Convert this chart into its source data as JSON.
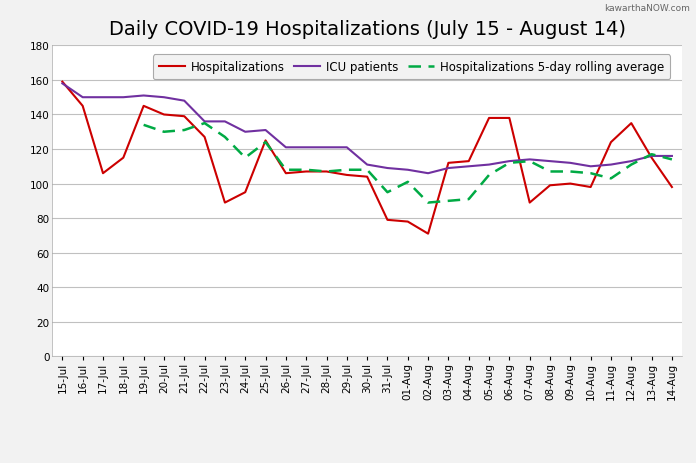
{
  "title": "Daily COVID-19 Hospitalizations (July 15 - August 14)",
  "labels": [
    "15-Jul",
    "16-Jul",
    "17-Jul",
    "18-Jul",
    "19-Jul",
    "20-Jul",
    "21-Jul",
    "22-Jul",
    "23-Jul",
    "24-Jul",
    "25-Jul",
    "26-Jul",
    "27-Jul",
    "28-Jul",
    "29-Jul",
    "30-Jul",
    "31-Jul",
    "01-Aug",
    "02-Aug",
    "03-Aug",
    "04-Aug",
    "05-Aug",
    "06-Aug",
    "07-Aug",
    "08-Aug",
    "09-Aug",
    "10-Aug",
    "11-Aug",
    "12-Aug",
    "13-Aug",
    "14-Aug"
  ],
  "hospitalizations": [
    159,
    145,
    106,
    115,
    145,
    140,
    139,
    127,
    89,
    95,
    125,
    106,
    107,
    107,
    105,
    104,
    79,
    78,
    71,
    112,
    113,
    138,
    138,
    89,
    99,
    100,
    98,
    124,
    135,
    115,
    98
  ],
  "icu": [
    158,
    150,
    150,
    150,
    151,
    150,
    148,
    136,
    136,
    130,
    131,
    121,
    121,
    121,
    121,
    111,
    109,
    108,
    106,
    109,
    110,
    111,
    113,
    114,
    113,
    112,
    110,
    111,
    113,
    116,
    116
  ],
  "rolling_avg": [
    null,
    null,
    null,
    null,
    134,
    130,
    131,
    135,
    127,
    115,
    124,
    108,
    108,
    107,
    108,
    108,
    95,
    101,
    89,
    90,
    91,
    105,
    112,
    113,
    107,
    107,
    106,
    103,
    111,
    117,
    114
  ],
  "hosp_color": "#cc0000",
  "icu_color": "#7030a0",
  "rolling_color": "#00aa44",
  "background_color": "#f2f2f2",
  "plot_bg_color": "#ffffff",
  "grid_color": "#c0c0c0",
  "ylim": [
    0,
    180
  ],
  "yticks": [
    0,
    20,
    40,
    60,
    80,
    100,
    120,
    140,
    160,
    180
  ],
  "title_fontsize": 14,
  "tick_fontsize": 7.5,
  "legend_fontsize": 8.5,
  "watermark": "kawarthaNOW.com"
}
